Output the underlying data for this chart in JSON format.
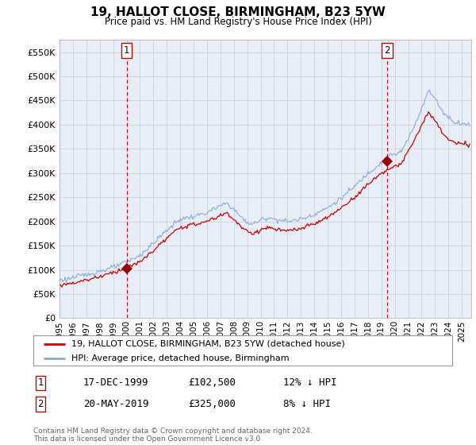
{
  "title": "19, HALLOT CLOSE, BIRMINGHAM, B23 5YW",
  "subtitle": "Price paid vs. HM Land Registry's House Price Index (HPI)",
  "legend_label1": "19, HALLOT CLOSE, BIRMINGHAM, B23 5YW (detached house)",
  "legend_label2": "HPI: Average price, detached house, Birmingham",
  "transaction1_label": "1",
  "transaction1_date": "17-DEC-1999",
  "transaction1_price": "£102,500",
  "transaction1_hpi": "12% ↓ HPI",
  "transaction2_label": "2",
  "transaction2_date": "20-MAY-2019",
  "transaction2_price": "£325,000",
  "transaction2_hpi": "8% ↓ HPI",
  "footer": "Contains HM Land Registry data © Crown copyright and database right 2024.\nThis data is licensed under the Open Government Licence v3.0.",
  "line1_color": "#cc0000",
  "line2_color": "#88aadd",
  "marker_color": "#990000",
  "vline_color": "#cc0000",
  "grid_color": "#cccccc",
  "bg_color": "#ffffff",
  "chart_bg_color": "#e8eef8",
  "ylim": [
    0,
    575000
  ],
  "yticks": [
    0,
    50000,
    100000,
    150000,
    200000,
    250000,
    300000,
    350000,
    400000,
    450000,
    500000,
    550000
  ],
  "transaction1_x": 2000.0,
  "transaction1_y": 102500,
  "transaction2_x": 2019.42,
  "transaction2_y": 325000,
  "vline1_x": 2000.0,
  "vline2_x": 2019.42,
  "xlim_left": 1995.3,
  "xlim_right": 2025.7
}
